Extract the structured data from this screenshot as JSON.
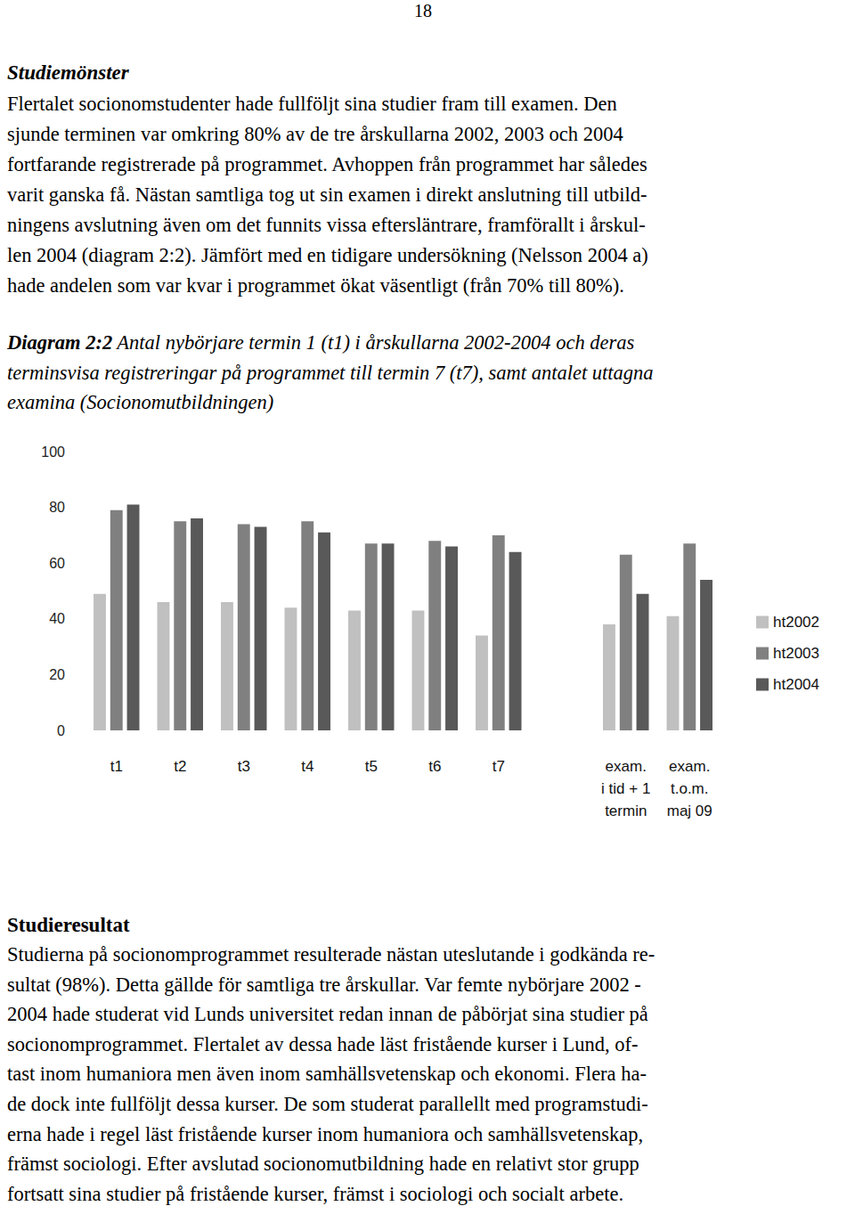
{
  "page_number": "18",
  "section1": {
    "heading": "Studiemönster",
    "lines": [
      "Flertalet socionomstudenter hade fullföljt sina studier fram till examen. Den",
      "sjunde terminen var omkring 80% av de tre årskullarna 2002, 2003 och 2004",
      "fortfarande registrerade på programmet. Avhoppen från programmet har således",
      "varit ganska få. Nästan samtliga tog ut sin examen i direkt anslutning till utbild-",
      "ningens avslutning även om det funnits vissa eftersläntrare, framförallt i årskul-",
      "len 2004 (diagram 2:2). Jämfört med en tidigare undersökning (Nelsson 2004 a)",
      "hade andelen som var kvar i programmet ökat väsentligt (från 70% till 80%)."
    ]
  },
  "caption": {
    "label": "Diagram 2:2",
    "lines": [
      "Antal nybörjare termin 1 (t1) i årskullarna 2002-2004 och deras",
      "terminsvisa registreringar på programmet till termin 7 (t7), samt antalet uttagna",
      "examina (Socionomutbildningen)"
    ]
  },
  "chart_data": {
    "type": "bar",
    "categories": [
      "t1",
      "t2",
      "t3",
      "t4",
      "t5",
      "t6",
      "t7",
      null,
      "exam.\ni tid + 1\ntermin",
      "exam.\nt.o.m.\nmaj 09"
    ],
    "series": [
      {
        "name": "ht2002",
        "color": "#c0c0c0",
        "values": [
          49,
          46,
          46,
          44,
          43,
          43,
          34,
          null,
          38,
          41
        ]
      },
      {
        "name": "ht2003",
        "color": "#808080",
        "values": [
          79,
          75,
          74,
          75,
          67,
          68,
          70,
          null,
          63,
          67
        ]
      },
      {
        "name": "ht2004",
        "color": "#595959",
        "values": [
          81,
          76,
          73,
          71,
          67,
          66,
          64,
          null,
          49,
          54
        ]
      }
    ],
    "ylim": [
      0,
      100
    ],
    "yticks": [
      0,
      20,
      40,
      60,
      80,
      100
    ],
    "grid": false,
    "legend": "right"
  },
  "section2": {
    "heading": "Studieresultat",
    "lines": [
      "Studierna på socionomprogrammet resulterade nästan uteslutande i godkända re-",
      "sultat (98%). Detta gällde för samtliga tre årskullar. Var femte nybörjare 2002 -",
      "2004 hade studerat vid Lunds universitet redan innan de påbörjat sina studier på",
      "socionomprogrammet. Flertalet av dessa hade läst fristående kurser i Lund, of-",
      "tast inom humaniora men även inom samhällsvetenskap och ekonomi. Flera ha-",
      "de dock inte fullföljt dessa kurser. De som studerat parallellt med programstudi-",
      "erna hade i regel läst fristående kurser inom humaniora och samhällsvetenskap,",
      "främst sociologi. Efter avslutad socionomutbildning hade en relativt stor grupp",
      "fortsatt sina studier på fristående kurser, främst i sociologi och socialt arbete."
    ]
  }
}
